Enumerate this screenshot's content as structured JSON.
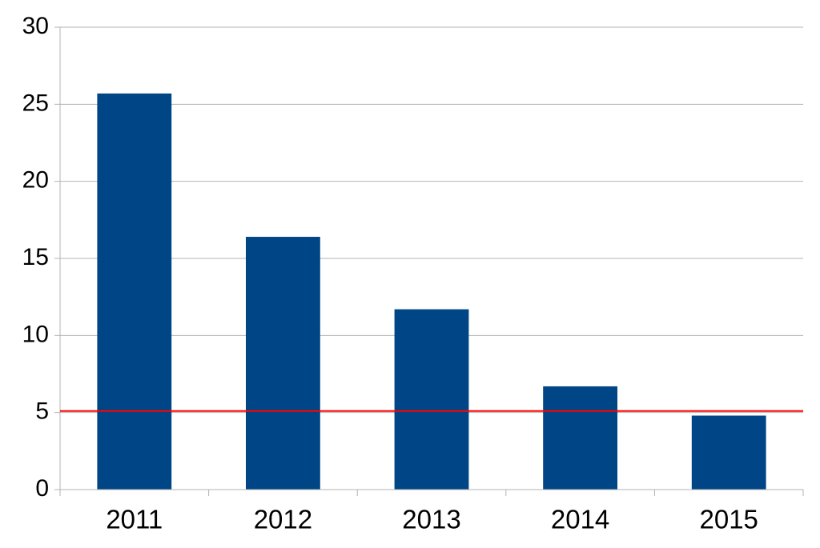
{
  "chart_data": {
    "type": "bar",
    "categories": [
      "2011",
      "2012",
      "2013",
      "2014",
      "2015"
    ],
    "values": [
      25.7,
      16.4,
      11.7,
      6.7,
      4.8
    ],
    "color": "#004586",
    "ylim": [
      0,
      30
    ],
    "yticks": [
      0,
      5,
      10,
      15,
      20,
      25,
      30
    ],
    "grid": true,
    "reference_line": {
      "value": 5.1,
      "color": "#ff0000"
    }
  }
}
